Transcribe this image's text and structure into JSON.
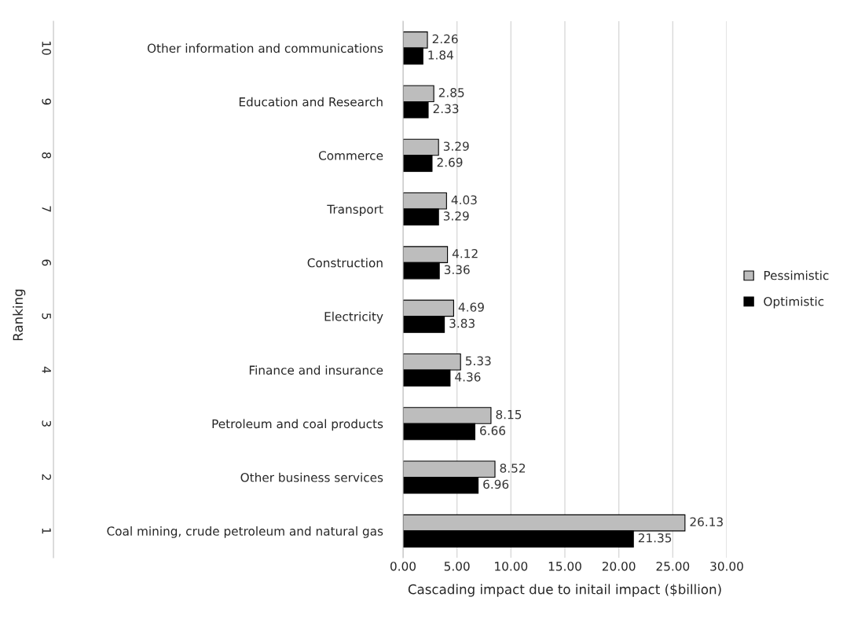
{
  "chart_data": {
    "type": "bar",
    "orientation": "horizontal",
    "categories": [
      "Other information and communications",
      "Education and Research",
      "Commerce",
      "Transport",
      "Construction",
      "Electricity",
      "Finance and insurance",
      "Petroleum and coal products",
      "Other business services",
      "Coal mining, crude petroleum and natural gas"
    ],
    "annotations": [
      "Ranking",
      "10",
      "9",
      "8",
      "7",
      "6",
      "5",
      "4",
      "3",
      "2",
      "1"
    ],
    "series": [
      {
        "name": "Pessimistic",
        "color": "#bdbdbd",
        "values": [
          2.26,
          2.85,
          3.29,
          4.03,
          4.12,
          4.69,
          5.33,
          8.15,
          8.52,
          26.13
        ]
      },
      {
        "name": "Optimistic",
        "color": "#000000",
        "values": [
          1.84,
          2.33,
          2.69,
          3.29,
          3.36,
          3.83,
          4.36,
          6.66,
          6.96,
          21.35
        ]
      }
    ],
    "xlabel": "Cascading impact due to initail impact ($billion)",
    "xlim": [
      0,
      30
    ],
    "xticks": [
      {
        "value": 0,
        "label": "0.00"
      },
      {
        "value": 5,
        "label": "5.00"
      },
      {
        "value": 10,
        "label": "10.00"
      },
      {
        "value": 15,
        "label": "15.00"
      },
      {
        "value": 20,
        "label": "20.00"
      },
      {
        "value": 25,
        "label": "25.00"
      },
      {
        "value": 30,
        "label": "30.00"
      }
    ],
    "data_labels": true,
    "grid": "x",
    "legend": "right"
  }
}
